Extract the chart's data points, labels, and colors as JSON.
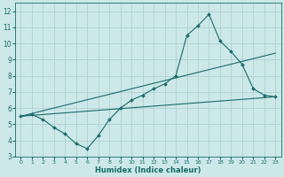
{
  "xlabel": "Humidex (Indice chaleur)",
  "bg_color": "#cce8e8",
  "grid_color": "#aacece",
  "line_color": "#1a6b6b",
  "xlim": [
    -0.5,
    23.5
  ],
  "ylim": [
    3,
    12.5
  ],
  "xticks": [
    0,
    1,
    2,
    3,
    4,
    5,
    6,
    7,
    8,
    9,
    10,
    11,
    12,
    13,
    14,
    15,
    16,
    17,
    18,
    19,
    20,
    21,
    22,
    23
  ],
  "yticks": [
    3,
    4,
    5,
    6,
    7,
    8,
    9,
    10,
    11,
    12
  ],
  "line1_x": [
    0,
    1,
    2,
    3,
    4,
    5,
    6,
    7,
    8,
    9,
    10,
    11,
    12,
    13,
    14,
    15,
    16,
    17,
    18,
    19,
    20,
    21,
    22,
    23
  ],
  "line1_y": [
    5.5,
    5.6,
    5.3,
    4.8,
    4.4,
    3.8,
    3.5,
    4.3,
    5.3,
    6.0,
    6.5,
    6.8,
    7.2,
    7.5,
    8.0,
    10.5,
    11.1,
    11.8,
    10.15,
    9.5,
    8.7,
    7.2,
    6.8,
    6.7
  ],
  "line2_x": [
    0,
    23
  ],
  "line2_y": [
    5.5,
    6.7
  ],
  "line3_x": [
    0,
    23
  ],
  "line3_y": [
    5.5,
    9.4
  ]
}
